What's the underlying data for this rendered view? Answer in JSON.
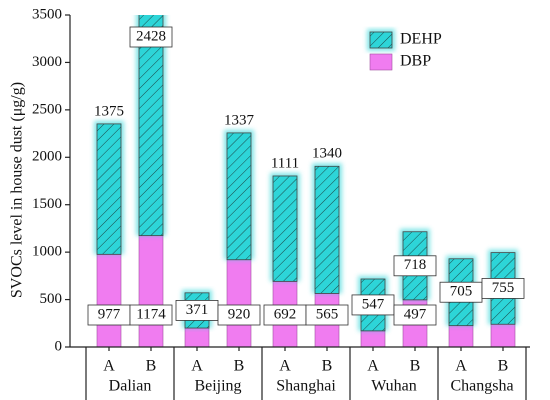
{
  "chart_data": {
    "type": "stacked_bar",
    "y_label": "SVOCs level  in house dust (μg/g)",
    "categories": [
      "A",
      "B",
      "A",
      "B",
      "A",
      "B",
      "A",
      "B",
      "A",
      "B"
    ],
    "groups": [
      "Dalian",
      "Beijing",
      "Shanghai",
      "Wuhan",
      "Changsha"
    ],
    "series": [
      {
        "name": "DBP",
        "color": "#f07cf0",
        "values": [
          977,
          1174,
          200,
          920,
          692,
          565,
          170,
          497,
          225,
          240
        ],
        "value_labels": [
          "977",
          "1174",
          null,
          "920",
          "692",
          "565",
          null,
          "497",
          null,
          null
        ]
      },
      {
        "name": "DEHP",
        "color": "#2dd5d8",
        "values": [
          1375,
          2428,
          371,
          1337,
          1111,
          1340,
          547,
          718,
          705,
          755
        ],
        "value_labels": [
          "1375",
          "2428",
          "371",
          "1337",
          "1111",
          "1340",
          "547",
          "718",
          "705",
          "755"
        ]
      }
    ],
    "ylim": [
      0,
      3500
    ],
    "yticks": [
      0,
      500,
      1000,
      1500,
      2000,
      2500,
      3000,
      3500
    ],
    "legend": "top-right"
  }
}
